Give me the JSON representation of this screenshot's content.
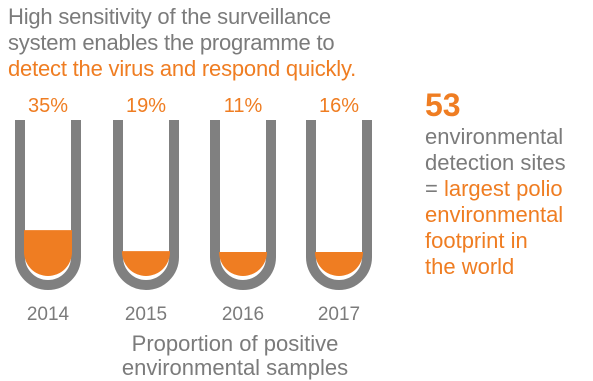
{
  "headline": {
    "line1": "High sensitivity of the surveillance",
    "line2": "system enables the programme to",
    "line3": "detect the virus and respond quickly."
  },
  "colors": {
    "accent": "#ef7d22",
    "text_gray": "#7b7b7b",
    "tube_gray": "#808080"
  },
  "chart_data": {
    "type": "bar",
    "categories": [
      "2014",
      "2015",
      "2016",
      "2017"
    ],
    "values": [
      35,
      19,
      11,
      16
    ],
    "value_labels": [
      "35%",
      "19%",
      "11%",
      "16%"
    ],
    "unit": "%",
    "ylim": [
      0,
      100
    ],
    "xlabel_lines": [
      "Proportion of positive",
      "environmental samples"
    ]
  },
  "side_panel": {
    "number": "53",
    "lines": [
      {
        "text": "environmental",
        "color": "gray"
      },
      {
        "text": "detection sites",
        "color": "gray"
      },
      {
        "text": "= ",
        "color": "gray",
        "continued": "largest polio"
      },
      {
        "text": "environmental",
        "color": "orange"
      },
      {
        "text": "footprint in",
        "color": "orange"
      },
      {
        "text": "the world",
        "color": "orange"
      }
    ]
  }
}
